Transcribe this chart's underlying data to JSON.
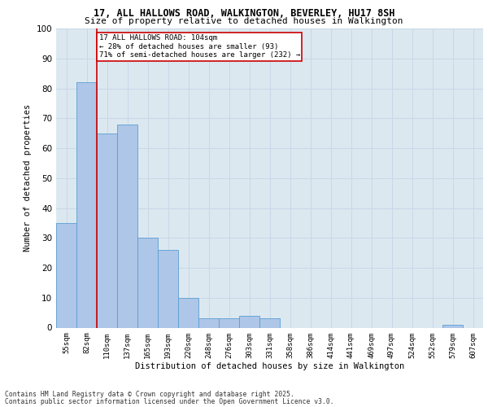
{
  "title_line1": "17, ALL HALLOWS ROAD, WALKINGTON, BEVERLEY, HU17 8SH",
  "title_line2": "Size of property relative to detached houses in Walkington",
  "xlabel": "Distribution of detached houses by size in Walkington",
  "ylabel": "Number of detached properties",
  "categories": [
    "55sqm",
    "82sqm",
    "110sqm",
    "137sqm",
    "165sqm",
    "193sqm",
    "220sqm",
    "248sqm",
    "276sqm",
    "303sqm",
    "331sqm",
    "358sqm",
    "386sqm",
    "414sqm",
    "441sqm",
    "469sqm",
    "497sqm",
    "524sqm",
    "552sqm",
    "579sqm",
    "607sqm"
  ],
  "values": [
    35,
    82,
    65,
    68,
    30,
    26,
    10,
    3,
    3,
    4,
    3,
    0,
    0,
    0,
    0,
    0,
    0,
    0,
    0,
    1,
    0
  ],
  "bar_color": "#aec6e8",
  "bar_edge_color": "#5a9fd4",
  "vline_color": "#cc0000",
  "vline_x_index": 1,
  "annotation_text": "17 ALL HALLOWS ROAD: 104sqm\n← 28% of detached houses are smaller (93)\n71% of semi-detached houses are larger (232) →",
  "annotation_box_color": "#cc0000",
  "ylim": [
    0,
    100
  ],
  "yticks": [
    0,
    10,
    20,
    30,
    40,
    50,
    60,
    70,
    80,
    90,
    100
  ],
  "grid_color": "#c8d8e8",
  "background_color": "#dce8f0",
  "footer_line1": "Contains HM Land Registry data © Crown copyright and database right 2025.",
  "footer_line2": "Contains public sector information licensed under the Open Government Licence v3.0."
}
